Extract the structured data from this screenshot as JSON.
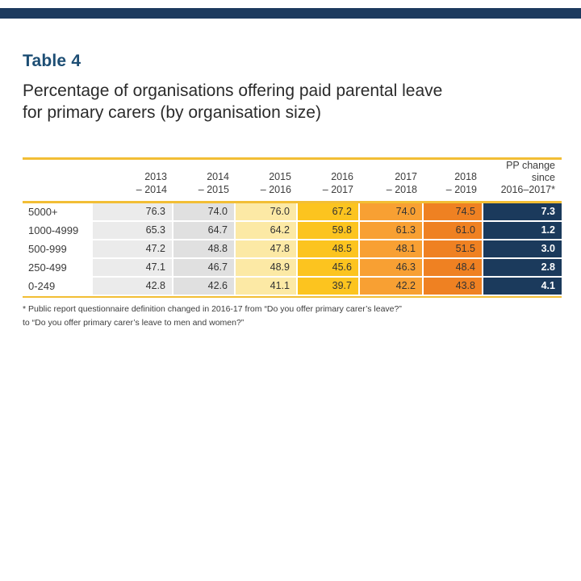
{
  "document": {
    "table_number": "Table 4",
    "title_line1": "Percentage of organisations offering paid parental leave",
    "title_line2": "for primary carers (by organisation size)"
  },
  "table": {
    "year_columns": [
      {
        "line1": "2013",
        "line2": "– 2014"
      },
      {
        "line1": "2014",
        "line2": "– 2015"
      },
      {
        "line1": "2015",
        "line2": "– 2016"
      },
      {
        "line1": "2016",
        "line2": "– 2017"
      },
      {
        "line1": "2017",
        "line2": "– 2018"
      },
      {
        "line1": "2018",
        "line2": "– 2019"
      }
    ],
    "change_column": {
      "line1": "PP change",
      "line2": "since",
      "line3": "2016–2017*"
    },
    "rows": [
      {
        "label": "5000+",
        "values": [
          "76.3",
          "74.0",
          "76.0",
          "67.2",
          "74.0",
          "74.5"
        ],
        "change": "7.3"
      },
      {
        "label": "1000-4999",
        "values": [
          "65.3",
          "64.7",
          "64.2",
          "59.8",
          "61.3",
          "61.0"
        ],
        "change": "1.2"
      },
      {
        "label": "500-999",
        "values": [
          "47.2",
          "48.8",
          "47.8",
          "48.5",
          "48.1",
          "51.5"
        ],
        "change": "3.0"
      },
      {
        "label": "250-499",
        "values": [
          "47.1",
          "46.7",
          "48.9",
          "45.6",
          "46.3",
          "48.4"
        ],
        "change": "2.8"
      },
      {
        "label": "0-249",
        "values": [
          "42.8",
          "42.6",
          "41.1",
          "39.7",
          "42.2",
          "43.8"
        ],
        "change": "4.1"
      }
    ],
    "colors": {
      "top_bar_navy": "#1C3A5E",
      "title_navy": "#1D4E74",
      "rule_gold": "#F2BE35",
      "col_2013_2014": "#EBEBEB",
      "col_2014_2015": "#E0E0E0",
      "col_2015_2016": "#FCE9A5",
      "col_2016_2017": "#FCC41F",
      "col_2017_2018": "#F8A033",
      "col_2018_2019": "#EF8122",
      "col_pp_change": "#1B3A5C"
    }
  },
  "footnote": {
    "line1": "* Public report questionnaire definition changed in 2016-17 from “Do you offer primary carer’s leave?”",
    "line2": "to “Do you offer primary carer’s leave to men and women?”"
  }
}
